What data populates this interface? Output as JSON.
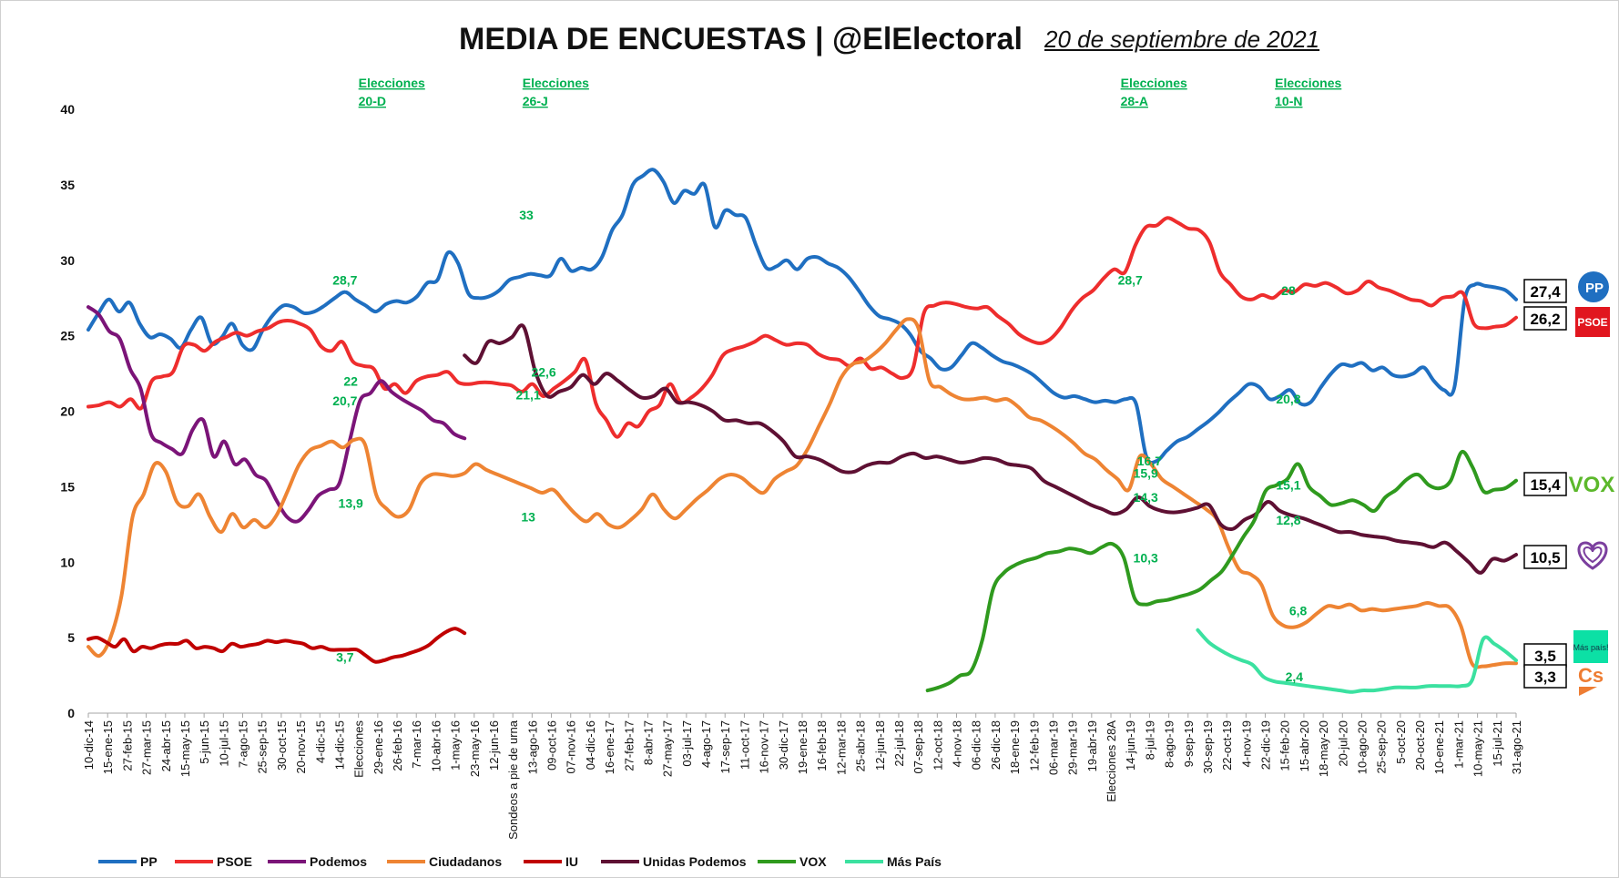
{
  "header": {
    "title": "MEDIA DE ENCUESTAS | @ElElectoral",
    "date": "20 de septiembre de 2021"
  },
  "colors": {
    "PP": "#1f6fc1",
    "PSOE": "#ee2d2d",
    "Podemos": "#7b1478",
    "Ciudadanos": "#ee8433",
    "IU": "#c00000",
    "Unidas Podemos": "#5e1033",
    "VOX": "#2f9a1e",
    "Mas Pais": "#3be1a0",
    "annotation": "#00b050"
  },
  "chart_data": {
    "type": "line",
    "ylim": [
      0,
      40
    ],
    "yticks": [
      0,
      5,
      10,
      15,
      20,
      25,
      30,
      35,
      40
    ],
    "grid": false,
    "legend": "bottom",
    "x_ticks": [
      "10-dic-14",
      "15-ene-15",
      "27-feb-15",
      "27-mar-15",
      "24-abr-15",
      "15-may-15",
      "5-jun-15",
      "10-jul-15",
      "7-ago-15",
      "25-sep-15",
      "30-oct-15",
      "20-nov-15",
      "4-dic-15",
      "14-dic-15",
      "Elecciones",
      "29-ene-16",
      "26-feb-16",
      "7-mar-16",
      "10-abr-16",
      "1-may-16",
      "23-may-16",
      "12-jun-16",
      "Sondeos a pie de urna",
      "13-ago-16",
      "09-oct-16",
      "07-nov-16",
      "04-dic-16",
      "16-ene-17",
      "27-feb-17",
      "8-abr-17",
      "27-may-17",
      "03-jul-17",
      "4-ago-17",
      "17-sep-17",
      "11-oct-17",
      "16-nov-17",
      "30-dic-17",
      "19-ene-18",
      "16-feb-18",
      "12-mar-18",
      "25-abr-18",
      "12-jun-18",
      "22-jul-18",
      "07-sep-18",
      "12-oct-18",
      "4-nov-18",
      "06-dic-18",
      "26-dic-18",
      "18-ene-19",
      "12-feb-19",
      "06-mar-19",
      "29-mar-19",
      "19-abr-19",
      "Elecciones 28A",
      "14-jun-19",
      "8-jul-19",
      "8-ago-19",
      "9-sep-19",
      "30-sep-19",
      "22-oct-19",
      "4-nov-19",
      "22-dic-19",
      "15-feb-20",
      "15-abr-20",
      "18-may-20",
      "20-jul-20",
      "10-ago-20",
      "25-sep-20",
      "5-oct-20",
      "20-oct-20",
      "10-ene-21",
      "1-mar-21",
      "10-may-21",
      "15-jul-21",
      "31-ago-21"
    ],
    "elections": [
      {
        "label": "Elecciones",
        "sub": "20-D",
        "x": 14
      },
      {
        "label": "Elecciones",
        "sub": "26-J",
        "x": 22.5
      },
      {
        "label": "Elecciones",
        "sub": "28-A",
        "x": 53.5
      },
      {
        "label": "Elecciones",
        "sub": "10-N",
        "x": 61.5
      }
    ],
    "series": [
      {
        "name": "PP",
        "start": 0,
        "values": [
          25.4,
          26.5,
          27.4,
          26.6,
          27.2,
          25.8,
          24.9,
          25.1,
          24.8,
          24.2,
          25.4,
          26.2,
          24.5,
          24.9,
          25.8,
          24.4,
          24.1,
          25.4,
          26.4,
          27.0,
          26.9,
          26.5,
          26.6,
          27.0,
          27.5,
          27.9,
          27.4,
          27.0,
          26.6,
          27.1,
          27.3,
          27.2,
          27.6,
          28.5,
          28.7,
          30.5,
          29.8,
          27.8,
          27.5,
          27.6,
          28.0,
          28.7,
          28.9,
          29.1,
          29.0,
          29.0,
          30.1,
          29.3,
          29.5,
          29.4,
          30.2,
          32.0,
          33.0,
          35.0,
          35.6,
          36.0,
          35.2,
          33.8,
          34.6,
          34.4,
          35.0,
          32.2,
          33.3,
          33.0,
          32.8,
          31.0,
          29.5,
          29.6,
          30.0,
          29.4,
          30.1,
          30.2,
          29.8,
          29.5,
          28.9,
          28.0,
          27.0,
          26.3,
          26.1,
          25.8,
          25.1,
          24.0,
          23.5,
          22.8,
          22.9,
          23.7,
          24.5,
          24.2,
          23.7,
          23.3,
          23.1,
          22.8,
          22.4,
          21.8,
          21.2,
          20.9,
          21.0,
          20.8,
          20.6,
          20.7,
          20.6,
          20.8,
          20.5,
          17.0,
          16.7,
          17.4,
          18.0,
          18.3,
          18.8,
          19.3,
          19.9,
          20.6,
          21.2,
          21.8,
          21.6,
          20.8,
          21.0,
          21.4,
          20.5,
          20.6,
          21.6,
          22.5,
          23.1,
          23.0,
          23.2,
          22.7,
          22.9,
          22.4,
          22.3,
          22.5,
          22.9,
          22.0,
          21.4,
          21.6,
          27.4,
          28.4,
          28.3,
          28.2,
          28.0,
          27.4
        ]
      },
      {
        "name": "PSOE",
        "start": 0,
        "values": [
          20.3,
          20.4,
          20.6,
          20.3,
          20.8,
          20.2,
          22.0,
          22.3,
          22.6,
          24.3,
          24.4,
          24.0,
          24.6,
          24.9,
          25.2,
          25.0,
          25.3,
          25.5,
          25.9,
          26.0,
          25.8,
          25.4,
          24.3,
          24.0,
          24.6,
          23.3,
          23.0,
          22.8,
          21.5,
          21.8,
          21.2,
          22.0,
          22.3,
          22.4,
          22.6,
          21.9,
          21.8,
          21.9,
          21.9,
          21.8,
          21.7,
          21.3,
          21.8,
          21.0,
          21.5,
          22.0,
          22.6,
          23.4,
          20.5,
          19.4,
          18.3,
          19.2,
          19.0,
          20.0,
          20.4,
          21.8,
          20.6,
          20.9,
          21.5,
          22.4,
          23.7,
          24.1,
          24.3,
          24.6,
          25.0,
          24.7,
          24.4,
          24.5,
          24.4,
          23.8,
          23.5,
          23.4,
          23.0,
          23.5,
          22.8,
          22.9,
          22.5,
          22.2,
          22.9,
          26.5,
          27.0,
          27.2,
          27.1,
          26.9,
          26.8,
          26.9,
          26.3,
          25.8,
          25.1,
          24.7,
          24.5,
          24.8,
          25.6,
          26.7,
          27.5,
          28.0,
          28.8,
          29.4,
          29.2,
          31.0,
          32.2,
          32.3,
          32.8,
          32.5,
          32.1,
          32.0,
          31.2,
          29.2,
          28.4,
          27.6,
          27.4,
          27.7,
          27.5,
          28.0,
          27.9,
          28.4,
          28.3,
          28.5,
          28.2,
          27.8,
          28.0,
          28.6,
          28.2,
          28.0,
          27.7,
          27.4,
          27.3,
          27.0,
          27.5,
          27.6,
          27.8,
          25.8,
          25.5,
          25.6,
          25.7,
          26.2
        ]
      },
      {
        "name": "Podemos",
        "start": 0,
        "values": [
          26.9,
          26.4,
          25.3,
          24.8,
          22.8,
          21.5,
          18.5,
          17.9,
          17.5,
          17.2,
          18.8,
          19.4,
          17.0,
          18.0,
          16.5,
          16.8,
          15.8,
          15.4,
          14.1,
          13.0,
          12.7,
          13.4,
          14.4,
          14.8,
          15.2,
          18.0,
          20.7,
          21.2,
          22.0,
          21.3,
          20.8,
          20.4,
          20.0,
          19.4,
          19.2,
          18.5,
          18.2
        ]
      },
      {
        "name": "Ciudadanos",
        "start": 0,
        "values": [
          4.4,
          3.8,
          5.0,
          7.8,
          13.0,
          14.5,
          16.5,
          16.0,
          14.0,
          13.7,
          14.5,
          13.0,
          12.0,
          13.2,
          12.3,
          12.8,
          12.3,
          13.1,
          14.7,
          16.4,
          17.4,
          17.7,
          18.0,
          17.6,
          18.1,
          17.8,
          14.5,
          13.5,
          13.0,
          13.5,
          15.2,
          15.8,
          15.8,
          15.7,
          15.9,
          16.5,
          16.1,
          15.8,
          15.5,
          15.2,
          14.9,
          14.6,
          14.8,
          14.0,
          13.2,
          12.7,
          13.2,
          12.5,
          12.3,
          12.8,
          13.5,
          14.5,
          13.5,
          12.9,
          13.5,
          14.2,
          14.8,
          15.5,
          15.8,
          15.6,
          15.0,
          14.6,
          15.5,
          16.0,
          16.4,
          17.5,
          19.0,
          20.5,
          22.2,
          23.1,
          23.3,
          23.8,
          24.5,
          25.4,
          26.1,
          25.5,
          22.0,
          21.6,
          21.1,
          20.8,
          20.8,
          20.9,
          20.7,
          20.8,
          20.3,
          19.6,
          19.4,
          19.0,
          18.5,
          17.9,
          17.2,
          16.8,
          16.1,
          15.5,
          14.8,
          17.0,
          16.5,
          15.5,
          15.0,
          14.5,
          14.0,
          13.5,
          12.8,
          11.0,
          9.5,
          9.2,
          8.5,
          6.5,
          5.8,
          5.7,
          6.0,
          6.6,
          7.1,
          7.0,
          7.2,
          6.8,
          6.9,
          6.8,
          6.9,
          7.0,
          7.1,
          7.3,
          7.1,
          7.0,
          5.8,
          3.3,
          3.1,
          3.2,
          3.3,
          3.3
        ]
      },
      {
        "name": "IU",
        "start": 0,
        "values": [
          4.9,
          5.0,
          4.7,
          4.4,
          4.9,
          4.1,
          4.4,
          4.3,
          4.5,
          4.6,
          4.6,
          4.8,
          4.3,
          4.4,
          4.3,
          4.1,
          4.6,
          4.4,
          4.5,
          4.6,
          4.8,
          4.7,
          4.8,
          4.7,
          4.6,
          4.3,
          4.4,
          4.2,
          4.2,
          4.2,
          4.2,
          3.8,
          3.4,
          3.5,
          3.7,
          3.8,
          4.0,
          4.2,
          4.5,
          5.0,
          5.4,
          5.6,
          5.3
        ]
      },
      {
        "name": "Unidas Podemos",
        "start": 19.5,
        "values": [
          23.7,
          23.2,
          24.6,
          24.5,
          24.9,
          25.6,
          22.6,
          21.0,
          21.3,
          21.6,
          22.4,
          21.8,
          22.5,
          22.0,
          21.4,
          20.9,
          21.0,
          21.5,
          20.6,
          20.6,
          20.4,
          20.0,
          19.4,
          19.4,
          19.2,
          19.2,
          18.7,
          18.0,
          17.0,
          17.0,
          16.8,
          16.4,
          16.0,
          16.0,
          16.4,
          16.6,
          16.6,
          17.0,
          17.2,
          16.9,
          17.0,
          16.8,
          16.6,
          16.7,
          16.9,
          16.8,
          16.5,
          16.4,
          16.2,
          15.4,
          15.0,
          14.6,
          14.2,
          13.8,
          13.5,
          13.2,
          13.5,
          14.3,
          13.7,
          13.4,
          13.3,
          13.4,
          13.6,
          13.8,
          12.5,
          12.2,
          12.8,
          13.2,
          14.0,
          13.4,
          13.1,
          12.9,
          12.6,
          12.3,
          12.0,
          12.0,
          11.8,
          11.7,
          11.6,
          11.4,
          11.3,
          11.2,
          11.0,
          11.3,
          10.7,
          10.0,
          9.3,
          10.2,
          10.1,
          10.5
        ]
      },
      {
        "name": "VOX",
        "start": 43.5,
        "values": [
          1.5,
          1.7,
          2.0,
          2.5,
          2.8,
          4.8,
          8.2,
          9.3,
          9.8,
          10.1,
          10.3,
          10.6,
          10.7,
          10.9,
          10.8,
          10.6,
          11.0,
          11.2,
          10.3,
          7.6,
          7.2,
          7.4,
          7.5,
          7.7,
          7.9,
          8.2,
          8.8,
          9.4,
          10.5,
          11.7,
          12.8,
          14.7,
          15.1,
          15.5,
          16.5,
          15.0,
          14.4,
          13.8,
          13.9,
          14.1,
          13.8,
          13.4,
          14.3,
          14.8,
          15.5,
          15.8,
          15.1,
          14.9,
          15.4,
          17.3,
          16.3,
          14.7,
          14.8,
          14.9,
          15.4
        ]
      },
      {
        "name": "Más País",
        "start": 57.5,
        "values": [
          5.5,
          4.7,
          4.2,
          3.8,
          3.5,
          3.2,
          2.4,
          2.1,
          2.0,
          1.9,
          1.8,
          1.7,
          1.6,
          1.5,
          1.4,
          1.5,
          1.5,
          1.6,
          1.7,
          1.7,
          1.7,
          1.8,
          1.8,
          1.8,
          1.8,
          2.2,
          4.9,
          4.6,
          4.1,
          3.5
        ]
      }
    ],
    "annotations": [
      {
        "x": 13.3,
        "y": 28.7,
        "text": "28,7"
      },
      {
        "x": 13.6,
        "y": 22.0,
        "text": "22"
      },
      {
        "x": 13.3,
        "y": 20.7,
        "text": "20,7"
      },
      {
        "x": 13.6,
        "y": 13.9,
        "text": "13,9"
      },
      {
        "x": 13.3,
        "y": 3.7,
        "text": "3,7"
      },
      {
        "x": 22.7,
        "y": 33.0,
        "text": "33"
      },
      {
        "x": 23.6,
        "y": 22.6,
        "text": "22,6"
      },
      {
        "x": 22.8,
        "y": 21.1,
        "text": "21,1"
      },
      {
        "x": 22.8,
        "y": 13.0,
        "text": "13"
      },
      {
        "x": 54.0,
        "y": 28.7,
        "text": "28,7"
      },
      {
        "x": 55.0,
        "y": 16.7,
        "text": "16,7"
      },
      {
        "x": 54.8,
        "y": 15.9,
        "text": "15,9"
      },
      {
        "x": 54.8,
        "y": 14.3,
        "text": "14,3"
      },
      {
        "x": 54.8,
        "y": 10.3,
        "text": "10,3"
      },
      {
        "x": 62.2,
        "y": 28.0,
        "text": "28"
      },
      {
        "x": 62.2,
        "y": 20.8,
        "text": "20,8"
      },
      {
        "x": 62.2,
        "y": 15.1,
        "text": "15,1"
      },
      {
        "x": 62.2,
        "y": 12.8,
        "text": "12,8"
      },
      {
        "x": 62.7,
        "y": 6.8,
        "text": "6,8"
      },
      {
        "x": 62.5,
        "y": 2.4,
        "text": "2,4"
      }
    ],
    "end_labels": [
      {
        "text": "27,4",
        "party": "PP",
        "y": 27.4
      },
      {
        "text": "26,2",
        "party": "PSOE",
        "y": 26.2
      },
      {
        "text": "15,4",
        "party": "VOX",
        "y": 15.4
      },
      {
        "text": "10,5",
        "party": "Unidas Podemos",
        "y": 10.5
      },
      {
        "text": "3,5",
        "party": "Más País",
        "y": 3.5
      },
      {
        "text": "3,3",
        "party": "Ciudadanos",
        "y": 3.3
      }
    ],
    "logos": {
      "pp": "PP",
      "psoe": "PSOE",
      "vox": "VOX",
      "mas_pais": "Más país!",
      "cs": "Cs"
    }
  }
}
